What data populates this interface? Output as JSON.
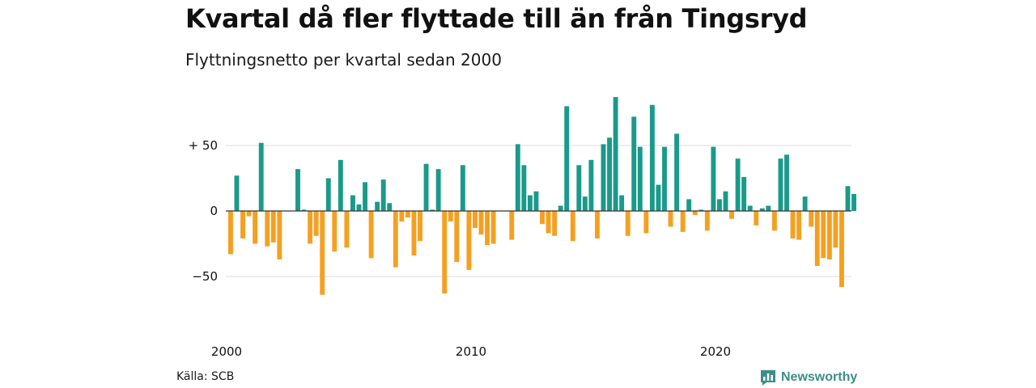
{
  "chart_data": {
    "type": "bar",
    "title": "Kvartal då fler flyttade till än från Tingsryd",
    "subtitle": "Flyttningsnetto per kvartal sedan 2000",
    "x_start_year": 2000,
    "periods_per_year": 4,
    "values": [
      -33,
      27,
      -21,
      -4,
      -25,
      52,
      -27,
      -24,
      -37,
      0,
      0,
      32,
      1,
      -25,
      -19,
      -64,
      25,
      -31,
      39,
      -28,
      12,
      5,
      22,
      -36,
      7,
      24,
      6,
      -43,
      -8,
      -5,
      -34,
      -23,
      36,
      1,
      32,
      -63,
      -8,
      -39,
      35,
      -45,
      -13,
      -18,
      -26,
      -25,
      0,
      0,
      -22,
      51,
      35,
      12,
      15,
      -10,
      -17,
      -19,
      4,
      80,
      -23,
      35,
      11,
      39,
      -21,
      51,
      56,
      87,
      12,
      -19,
      72,
      49,
      -17,
      81,
      20,
      49,
      -12,
      59,
      -16,
      9,
      -3,
      1,
      -15,
      49,
      9,
      15,
      -6,
      40,
      26,
      4,
      -11,
      2,
      4,
      -15,
      40,
      43,
      -21,
      -22,
      11,
      -12,
      -42,
      -36,
      -37,
      -28,
      -58,
      19,
      13
    ],
    "x_ticks": [
      {
        "year": 2000,
        "label": "2000"
      },
      {
        "year": 2010,
        "label": "2010"
      },
      {
        "year": 2020,
        "label": "2020"
      }
    ],
    "y_ticks": [
      {
        "value": 50,
        "label": "+ 50"
      },
      {
        "value": 0,
        "label": "0"
      },
      {
        "value": -50,
        "label": "−50"
      }
    ],
    "ylim": [
      -80,
      90
    ],
    "grid": true,
    "colors": {
      "positive": "#1a9a8a",
      "negative": "#f5a020",
      "grid": "#dddddd",
      "zero_line": "#333333"
    }
  },
  "footer": {
    "source": "Källa: SCB",
    "brand": "Newsworthy",
    "brand_icon": "bar-chart-icon",
    "brand_color": "#3a8f86"
  }
}
